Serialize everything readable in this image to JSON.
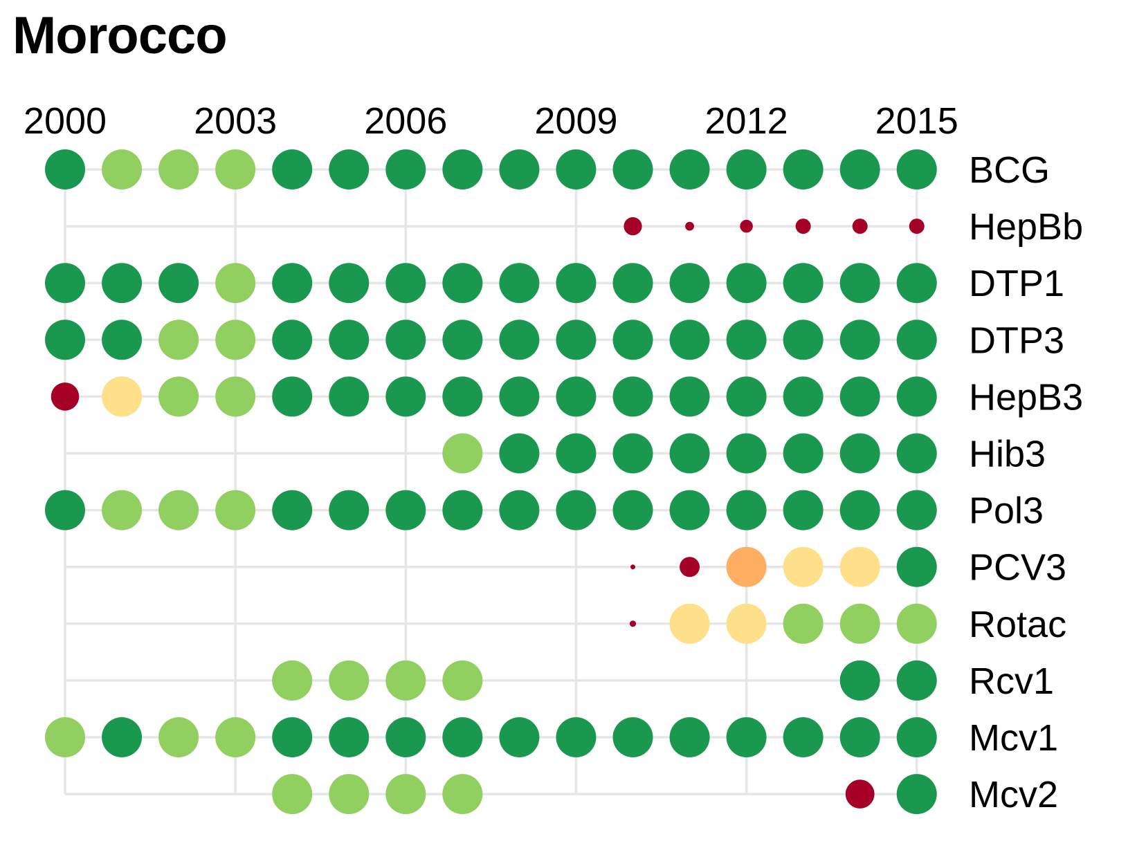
{
  "chart_data": {
    "type": "scatter",
    "title": "Morocco",
    "x_ticks": [
      "2000",
      "2003",
      "2006",
      "2009",
      "2012",
      "2015"
    ],
    "x_range": [
      2000,
      2015
    ],
    "grid": true,
    "colors": {
      "high": "#1a9850",
      "good": "#91cf60",
      "mid": "#fee08b",
      "lowmid": "#fdae61",
      "low": "#a50026",
      "grid": "#e6e6e6"
    },
    "series": [
      {
        "name": "BCG",
        "start": 2000,
        "levels": [
          "high",
          "good",
          "good",
          "good",
          "high",
          "high",
          "high",
          "high",
          "high",
          "high",
          "high",
          "high",
          "high",
          "high",
          "high",
          "high"
        ]
      },
      {
        "name": "HepBb",
        "start": 2000,
        "levels": [
          null,
          null,
          null,
          null,
          null,
          null,
          null,
          null,
          null,
          null,
          "low",
          "low",
          "low",
          "low",
          "low",
          "low"
        ],
        "sizes": [
          null,
          null,
          null,
          null,
          null,
          null,
          null,
          null,
          null,
          null,
          0.45,
          0.22,
          0.32,
          0.38,
          0.38,
          0.38
        ]
      },
      {
        "name": "DTP1",
        "start": 2000,
        "levels": [
          "high",
          "high",
          "high",
          "good",
          "high",
          "high",
          "high",
          "high",
          "high",
          "high",
          "high",
          "high",
          "high",
          "high",
          "high",
          "high"
        ]
      },
      {
        "name": "DTP3",
        "start": 2000,
        "levels": [
          "high",
          "high",
          "good",
          "good",
          "high",
          "high",
          "high",
          "high",
          "high",
          "high",
          "high",
          "high",
          "high",
          "high",
          "high",
          "high"
        ]
      },
      {
        "name": "HepB3",
        "start": 2000,
        "levels": [
          "low",
          "mid",
          "good",
          "good",
          "high",
          "high",
          "high",
          "high",
          "high",
          "high",
          "high",
          "high",
          "high",
          "high",
          "high",
          "high"
        ],
        "sizes": [
          0.7,
          1,
          1,
          1,
          1,
          1,
          1,
          1,
          1,
          1,
          1,
          1,
          1,
          1,
          1,
          1
        ]
      },
      {
        "name": "Hib3",
        "start": 2000,
        "levels": [
          null,
          null,
          null,
          null,
          null,
          null,
          null,
          "good",
          "high",
          "high",
          "high",
          "high",
          "high",
          "high",
          "high",
          "high"
        ]
      },
      {
        "name": "Pol3",
        "start": 2000,
        "levels": [
          "high",
          "good",
          "good",
          "good",
          "high",
          "high",
          "high",
          "high",
          "high",
          "high",
          "high",
          "high",
          "high",
          "high",
          "high",
          "high"
        ]
      },
      {
        "name": "PCV3",
        "start": 2000,
        "levels": [
          null,
          null,
          null,
          null,
          null,
          null,
          null,
          null,
          null,
          null,
          "low",
          "low",
          "lowmid",
          "mid",
          "mid",
          "high"
        ],
        "sizes": [
          null,
          null,
          null,
          null,
          null,
          null,
          null,
          null,
          null,
          null,
          0.12,
          0.5,
          1,
          1,
          1,
          1
        ]
      },
      {
        "name": "Rotac",
        "start": 2000,
        "levels": [
          null,
          null,
          null,
          null,
          null,
          null,
          null,
          null,
          null,
          null,
          "low",
          "mid",
          "mid",
          "good",
          "good",
          "good"
        ],
        "sizes": [
          null,
          null,
          null,
          null,
          null,
          null,
          null,
          null,
          null,
          null,
          0.16,
          1,
          1,
          1,
          1,
          1
        ]
      },
      {
        "name": "Rcv1",
        "start": 2000,
        "levels": [
          null,
          null,
          null,
          null,
          "good",
          "good",
          "good",
          "good",
          null,
          null,
          null,
          null,
          null,
          null,
          "high",
          "high"
        ]
      },
      {
        "name": "Mcv1",
        "start": 2000,
        "levels": [
          "good",
          "high",
          "good",
          "good",
          "high",
          "high",
          "high",
          "high",
          "high",
          "high",
          "high",
          "high",
          "high",
          "high",
          "high",
          "high"
        ]
      },
      {
        "name": "Mcv2",
        "start": 2000,
        "levels": [
          null,
          null,
          null,
          null,
          "good",
          "good",
          "good",
          "good",
          null,
          null,
          null,
          null,
          null,
          null,
          "low",
          "high"
        ],
        "sizes": [
          null,
          null,
          null,
          null,
          1,
          1,
          1,
          1,
          null,
          null,
          null,
          null,
          null,
          null,
          0.72,
          1
        ]
      }
    ]
  }
}
